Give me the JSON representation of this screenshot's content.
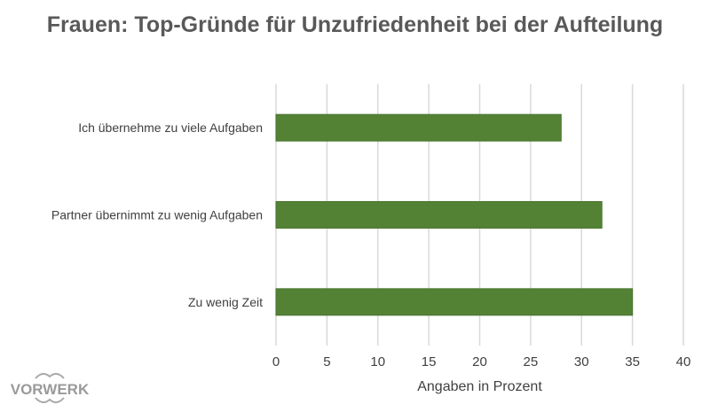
{
  "chart_data": {
    "type": "bar",
    "orientation": "horizontal",
    "title": "Frauen: Top-Gründe für Unzufriedenheit bei der Aufteilung",
    "categories": [
      "Ich übernehme zu viele Aufgaben",
      "Partner übernimmt zu wenig Aufgaben",
      "Zu wenig Zeit"
    ],
    "values": [
      28,
      32,
      35
    ],
    "xlabel": "Angaben in Prozent",
    "ylabel": "",
    "xlim": [
      0,
      40
    ],
    "xticks": [
      "0",
      "5",
      "10",
      "15",
      "20",
      "25",
      "30",
      "35",
      "40"
    ],
    "grid": true,
    "bar_color": "#548235",
    "grid_color": "#d9d9d9"
  },
  "logo": {
    "text": "VORWERK"
  }
}
